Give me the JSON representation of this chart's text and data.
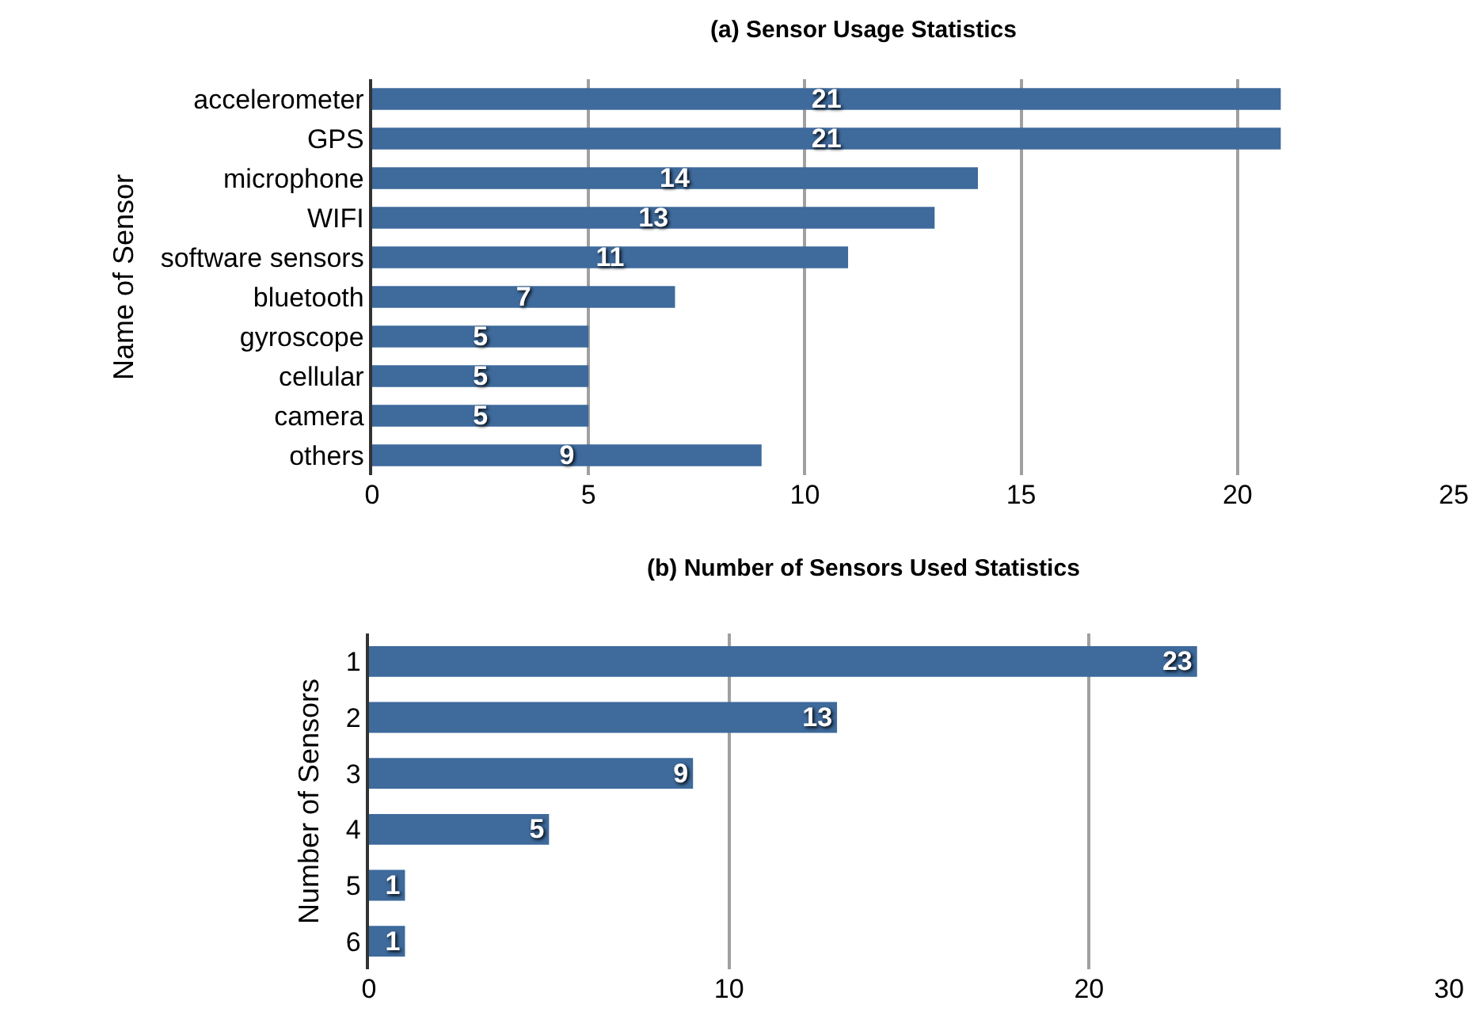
{
  "chart_data": [
    {
      "type": "bar",
      "orientation": "horizontal",
      "title": "(a) Sensor Usage Statistics",
      "ylabel": "Name of Sensor",
      "categories": [
        "accelerometer",
        "GPS",
        "microphone",
        "WIFI",
        "software sensors",
        "bluetooth",
        "gyroscope",
        "cellular",
        "camera",
        "others"
      ],
      "values": [
        21,
        21,
        14,
        13,
        11,
        7,
        5,
        5,
        5,
        9
      ],
      "color": "#3e6a9c",
      "xlim": [
        0,
        25
      ],
      "xticks": [
        0,
        5,
        10,
        15,
        20,
        25
      ],
      "grid": "x",
      "data_labels": true
    },
    {
      "type": "bar",
      "orientation": "horizontal",
      "title": "(b) Number of Sensors Used Statistics",
      "ylabel": "Number of Sensors",
      "categories": [
        "1",
        "2",
        "3",
        "4",
        "5",
        "6"
      ],
      "values": [
        23,
        13,
        9,
        5,
        1,
        1
      ],
      "color": "#3e6a9c",
      "xlim": [
        0,
        30
      ],
      "xticks": [
        0,
        10,
        20,
        30
      ],
      "grid": "x",
      "data_labels": true
    }
  ]
}
